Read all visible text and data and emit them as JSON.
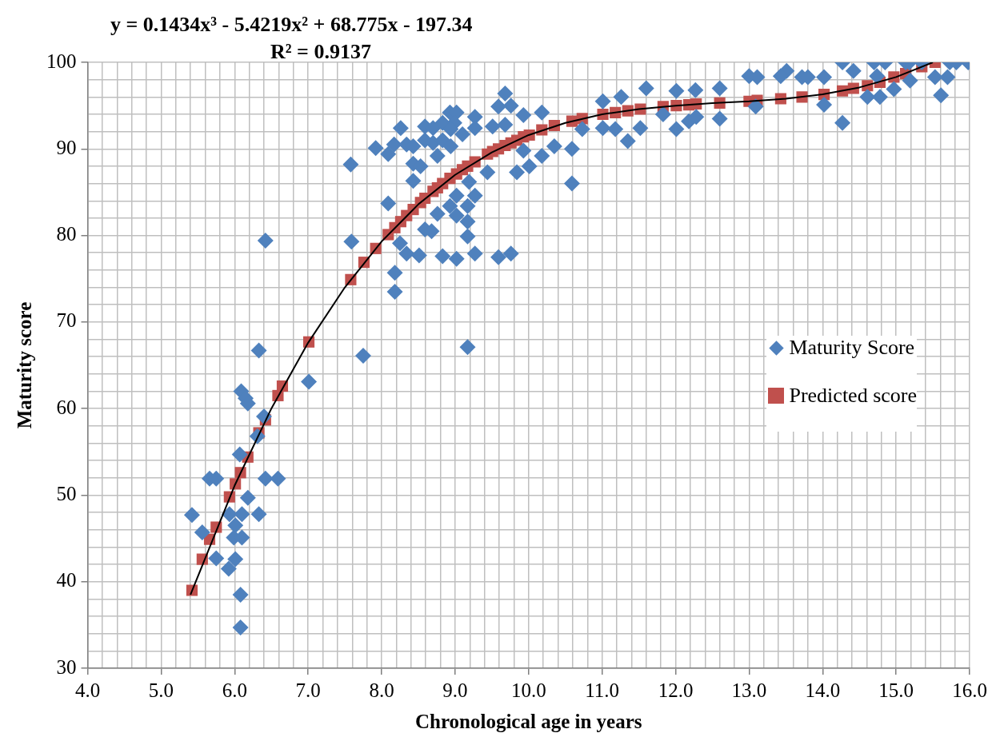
{
  "chart_data": {
    "type": "scatter",
    "xlabel": "Chronological age in years",
    "ylabel": "Maturity score",
    "annotations": [
      "y = 0.1434x³ - 5.4219x² + 68.775x - 197.34",
      "R² = 0.9137"
    ],
    "xlim": [
      4,
      16
    ],
    "xticks": [
      {
        "value": 4,
        "label": "4.0"
      },
      {
        "value": 4.2,
        "label": null
      },
      {
        "value": 4.4,
        "label": null
      },
      {
        "value": 4.6,
        "label": null
      },
      {
        "value": 4.8,
        "label": null
      },
      {
        "value": 5,
        "label": "5.0"
      },
      {
        "value": 5.2,
        "label": null
      },
      {
        "value": 5.4,
        "label": null
      },
      {
        "value": 5.6,
        "label": null
      },
      {
        "value": 5.8,
        "label": null
      },
      {
        "value": 6,
        "label": "6.0"
      },
      {
        "value": 6.2,
        "label": null
      },
      {
        "value": 6.4,
        "label": null
      },
      {
        "value": 6.6,
        "label": null
      },
      {
        "value": 6.8,
        "label": null
      },
      {
        "value": 7,
        "label": "7.0"
      },
      {
        "value": 7.2,
        "label": null
      },
      {
        "value": 7.4,
        "label": null
      },
      {
        "value": 7.6,
        "label": null
      },
      {
        "value": 7.8,
        "label": null
      },
      {
        "value": 8,
        "label": "8.0"
      },
      {
        "value": 8.2,
        "label": null
      },
      {
        "value": 8.4,
        "label": null
      },
      {
        "value": 8.6,
        "label": null
      },
      {
        "value": 8.8,
        "label": null
      },
      {
        "value": 9,
        "label": "9.0"
      },
      {
        "value": 9.2,
        "label": null
      },
      {
        "value": 9.4,
        "label": null
      },
      {
        "value": 9.6,
        "label": null
      },
      {
        "value": 9.8,
        "label": null
      },
      {
        "value": 10,
        "label": "10.0"
      },
      {
        "value": 10.2,
        "label": null
      },
      {
        "value": 10.4,
        "label": null
      },
      {
        "value": 10.6,
        "label": null
      },
      {
        "value": 10.8,
        "label": null
      },
      {
        "value": 11,
        "label": "11.0"
      },
      {
        "value": 11.2,
        "label": null
      },
      {
        "value": 11.4,
        "label": null
      },
      {
        "value": 11.6,
        "label": null
      },
      {
        "value": 11.8,
        "label": null
      },
      {
        "value": 12,
        "label": "12.0"
      },
      {
        "value": 12.2,
        "label": null
      },
      {
        "value": 12.4,
        "label": null
      },
      {
        "value": 12.6,
        "label": null
      },
      {
        "value": 12.8,
        "label": null
      },
      {
        "value": 13,
        "label": "13.0"
      },
      {
        "value": 13.2,
        "label": null
      },
      {
        "value": 13.4,
        "label": null
      },
      {
        "value": 13.6,
        "label": null
      },
      {
        "value": 13.8,
        "label": null
      },
      {
        "value": 14,
        "label": "14.0"
      },
      {
        "value": 14.2,
        "label": null
      },
      {
        "value": 14.4,
        "label": null
      },
      {
        "value": 14.6,
        "label": null
      },
      {
        "value": 14.8,
        "label": null
      },
      {
        "value": 15,
        "label": "15.0"
      },
      {
        "value": 15.2,
        "label": null
      },
      {
        "value": 15.4,
        "label": null
      },
      {
        "value": 15.6,
        "label": null
      },
      {
        "value": 15.8,
        "label": null
      },
      {
        "value": 16,
        "label": "16.0"
      }
    ],
    "ylim": [
      30,
      100
    ],
    "yticks": [
      30,
      {
        "value": 32,
        "label": null
      },
      {
        "value": 34,
        "label": null
      },
      {
        "value": 36,
        "label": null
      },
      {
        "value": 38,
        "label": null
      },
      40,
      {
        "value": 42,
        "label": null
      },
      {
        "value": 44,
        "label": null
      },
      {
        "value": 46,
        "label": null
      },
      {
        "value": 48,
        "label": null
      },
      50,
      {
        "value": 52,
        "label": null
      },
      {
        "value": 54,
        "label": null
      },
      {
        "value": 56,
        "label": null
      },
      {
        "value": 58,
        "label": null
      },
      60,
      {
        "value": 62,
        "label": null
      },
      {
        "value": 64,
        "label": null
      },
      {
        "value": 66,
        "label": null
      },
      {
        "value": 68,
        "label": null
      },
      70,
      {
        "value": 72,
        "label": null
      },
      {
        "value": 74,
        "label": null
      },
      {
        "value": 76,
        "label": null
      },
      {
        "value": 78,
        "label": null
      },
      80,
      {
        "value": 82,
        "label": null
      },
      {
        "value": 84,
        "label": null
      },
      {
        "value": 86,
        "label": null
      },
      {
        "value": 88,
        "label": null
      },
      90,
      {
        "value": 92,
        "label": null
      },
      {
        "value": 94,
        "label": null
      },
      {
        "value": 96,
        "label": null
      },
      {
        "value": 98,
        "label": null
      },
      100
    ],
    "grid": true,
    "legend": "right",
    "series": [
      {
        "name": "Maturity Score",
        "color": "#4f81bd",
        "marker": "diamond",
        "x": [
          6.42,
          7.59,
          6.33,
          7.75,
          7.01,
          6.09,
          6.15,
          6.18,
          6.4,
          6.31,
          6.07,
          5.66,
          5.75,
          6.42,
          6.59,
          6.18,
          5.42,
          5.93,
          6.1,
          6.33,
          6.01,
          5.56,
          5.99,
          6.1,
          5.75,
          6.01,
          5.92,
          6.08,
          6.08,
          9.68,
          9.59,
          9.76,
          8.93,
          9.02,
          9.27,
          10.18,
          9.93,
          8.26,
          8.59,
          8.7,
          8.83,
          8.99,
          9.27,
          9.51,
          9.68,
          9.1,
          8.94,
          7.92,
          8.09,
          8.17,
          8.34,
          8.43,
          8.59,
          8.7,
          8.83,
          8.94,
          8.76,
          7.58,
          8.43,
          8.53,
          8.43,
          10.35,
          10.59,
          9.93,
          10.18,
          10.01,
          9.84,
          9.44,
          10.59,
          9.19,
          8.09,
          9.02,
          9.27,
          8.93,
          9.17,
          9.02,
          8.76,
          9.17,
          8.59,
          8.68,
          9.17,
          8.25,
          8.34,
          8.51,
          8.83,
          9.02,
          9.27,
          9.59,
          9.76,
          8.18,
          8.18,
          9.17,
          10.73,
          11.01,
          11.01,
          11.18,
          11.26,
          11.35,
          11.52,
          11.6,
          12.01,
          12.01,
          12.27,
          12.6,
          12.6,
          12.18,
          12.28,
          11.83,
          13.0,
          13.11,
          13.09,
          13.51,
          13.43,
          13.72,
          13.8,
          14.02,
          14.02,
          14.27,
          14.27,
          14.42,
          14.7,
          14.85,
          14.61,
          14.78,
          14.97,
          15.13,
          15.18,
          15.19,
          15.53,
          15.7,
          15.61,
          15.73,
          15.82,
          15.98,
          15.35,
          14.74
        ],
        "values": [
          79.4,
          79.3,
          66.7,
          66.1,
          63.1,
          62.0,
          61.2,
          60.6,
          59.1,
          56.8,
          54.7,
          51.9,
          51.9,
          51.9,
          51.9,
          49.7,
          47.7,
          47.8,
          47.8,
          47.8,
          46.5,
          45.7,
          45.1,
          45.1,
          42.7,
          42.6,
          41.5,
          38.5,
          34.7,
          96.4,
          94.9,
          95.0,
          94.2,
          94.2,
          93.7,
          94.2,
          93.9,
          92.4,
          92.6,
          92.4,
          93.0,
          93.0,
          92.4,
          92.6,
          92.8,
          91.7,
          92.3,
          90.1,
          89.4,
          90.5,
          90.5,
          90.3,
          91.0,
          90.7,
          91.0,
          90.3,
          89.2,
          88.2,
          88.3,
          88.0,
          86.3,
          90.3,
          90.0,
          89.8,
          89.2,
          88.0,
          87.3,
          87.3,
          86.0,
          86.2,
          83.7,
          84.6,
          84.6,
          83.4,
          83.4,
          82.3,
          82.5,
          81.6,
          80.7,
          80.5,
          79.9,
          79.1,
          77.9,
          77.7,
          77.6,
          77.3,
          77.9,
          77.5,
          77.9,
          75.7,
          73.5,
          67.1,
          92.3,
          95.5,
          92.4,
          92.3,
          96.0,
          90.9,
          92.4,
          97.0,
          96.7,
          92.3,
          96.8,
          97.0,
          93.5,
          93.2,
          93.7,
          94.0,
          98.4,
          98.3,
          94.9,
          99.0,
          98.4,
          98.3,
          98.3,
          98.3,
          95.1,
          100,
          93.0,
          99.0,
          100,
          100,
          96.0,
          96.0,
          96.9,
          100,
          100,
          97.9,
          98.3,
          98.3,
          96.2,
          100,
          100,
          100,
          100,
          98.4
        ]
      },
      {
        "name": "Predicted score",
        "color": "#c0504d",
        "marker": "square",
        "x": [
          5.42,
          5.56,
          5.66,
          5.75,
          5.93,
          6.01,
          6.08,
          6.18,
          6.33,
          6.42,
          6.59,
          6.65,
          7.01,
          7.58,
          7.76,
          7.92,
          8.09,
          8.18,
          8.26,
          8.34,
          8.43,
          8.53,
          8.59,
          8.7,
          8.76,
          8.83,
          8.93,
          9.02,
          9.1,
          9.17,
          9.27,
          9.44,
          9.51,
          9.59,
          9.68,
          9.76,
          9.84,
          9.93,
          10.01,
          10.18,
          10.35,
          10.59,
          10.73,
          11.01,
          11.18,
          11.35,
          11.52,
          11.83,
          12.01,
          12.18,
          12.28,
          12.6,
          13.0,
          13.11,
          13.43,
          13.72,
          14.02,
          14.27,
          14.42,
          14.61,
          14.78,
          14.97,
          15.13,
          15.35,
          15.53
        ],
        "values": [
          39.0,
          42.6,
          44.9,
          46.3,
          49.8,
          51.3,
          52.6,
          54.4,
          57.2,
          58.7,
          61.5,
          62.6,
          67.7,
          74.9,
          76.9,
          78.5,
          80.1,
          80.9,
          81.6,
          82.3,
          83.0,
          83.8,
          84.3,
          85.1,
          85.5,
          86.0,
          86.6,
          87.1,
          87.6,
          88.0,
          88.5,
          89.4,
          89.7,
          90.0,
          90.4,
          90.7,
          91.0,
          91.4,
          91.6,
          92.2,
          92.7,
          93.2,
          93.5,
          94.0,
          94.2,
          94.4,
          94.6,
          94.9,
          95.0,
          95.1,
          95.2,
          95.3,
          95.5,
          95.6,
          95.8,
          96.0,
          96.3,
          96.7,
          97.0,
          97.3,
          97.7,
          98.3,
          98.7,
          99.5,
          100.0
        ]
      },
      {
        "type": "line",
        "color": "#000000",
        "marker": "none",
        "line_style": "solid",
        "x": [
          5.4,
          6.0,
          6.5,
          7.0,
          7.5,
          8.0,
          8.5,
          9.0,
          9.5,
          10.0,
          10.5,
          11.0,
          11.5,
          12.0,
          12.5,
          13.0,
          13.5,
          14.0,
          14.5,
          15.0,
          15.5
        ],
        "values": [
          38.5,
          51.1,
          60.0,
          67.6,
          74.0,
          79.3,
          83.6,
          87.0,
          89.6,
          91.6,
          93.0,
          94.0,
          94.6,
          95.0,
          95.3,
          95.5,
          95.8,
          96.3,
          97.1,
          98.3,
          100.0
        ]
      }
    ]
  }
}
